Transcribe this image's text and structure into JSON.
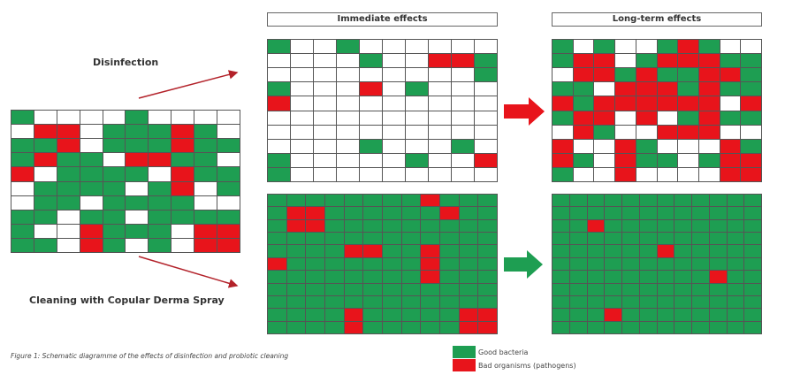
{
  "headers": {
    "immediate": "Immediate effects",
    "longterm": "Long-term effects"
  },
  "labels": {
    "disinfection": "Disinfection",
    "cleaning": "Cleaning with Copular Derma Spray"
  },
  "caption": "Figure 1: Schematic diagramme of the effects of disinfection and probiotic cleaning",
  "legend": [
    {
      "label": "Good bacteria",
      "color": "#1e9e52"
    },
    {
      "label": "Bad organisms (pathogens)",
      "color": "#e8141b"
    }
  ],
  "colors": {
    "good": "#1e9e52",
    "bad": "#e8141b",
    "empty": "#ffffff",
    "arrow_red": "#e8141b",
    "arrow_green": "#1e9e52",
    "line": "#b3222a"
  },
  "grids": {
    "start": {
      "rows": [
        "gw.wwgw.ww",
        "wrrwgggrgw",
        "ggrwgggrgg",
        "grggwrrgg.",
        "rwggggwrgg",
        "wggggwgrwg",
        "wggwggggww",
        "ggwggwgggg",
        "gwwrgggwrr",
        "ggwrgwgwrr"
      ]
    },
    "immediate_disinfection": {
      "rows": [
        "gwwgwwwwww",
        "wwwwgwwrrg",
        "wwwwwwwwwg",
        "gwwwrwgwww",
        "rwwwwwwwww",
        "wwwwwwwwww",
        "wwwwwwwwww",
        "wwwwgwwwgw",
        "gwwwwwgwwr",
        "gwwwwwwwww"
      ]
    },
    "longterm_disinfection": {
      "rows": [
        "gwgwwgrgww",
        "grrwgrrrgg",
        "wrrgrggrrg",
        "ggwrrrgrgg",
        "rgrrrrrrwr",
        "grrwrwgrgg",
        "wrgwwrrrww",
        "rwwrgwwwrg",
        "rgwrggwgrr",
        "gwwrwwwwrr"
      ]
    },
    "immediate_cleaning": {
      "rows": [
        "ggggggggrgg",
        "grrggggggrgg",
        "grrggggggggg",
        "gggggggggggg",
        "ggggrrggrggg",
        "rgggggggrggg",
        "ggggggggrggg",
        "gggggggggggg",
        "gggggggggggg",
        "ggggrgggggrr",
        "ggggrgggggrr"
      ]
    },
    "longterm_cleaning": {
      "rows": [
        "ggggggggggg",
        "gggggggggggg",
        "ggrggggggggg",
        "gggggggggggg",
        "ggggggrggggg",
        "gggggggggggg",
        "gggggggggrgg",
        "gggggggggggg",
        "gggggggggggg",
        "gggrgggggggg",
        "gggggggggggg"
      ]
    }
  }
}
